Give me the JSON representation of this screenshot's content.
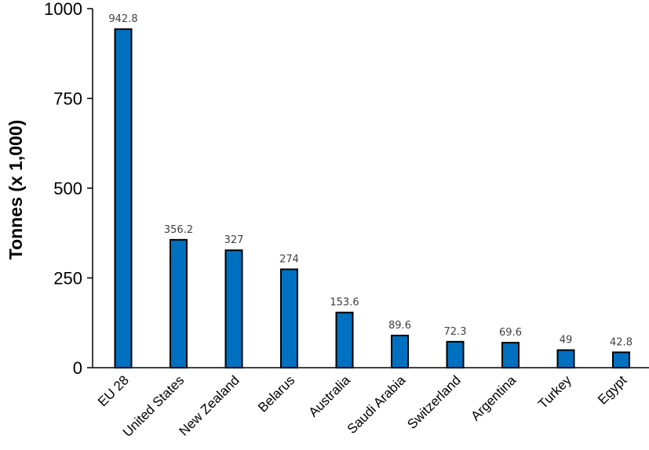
{
  "chart_data": {
    "type": "bar",
    "title": "",
    "xlabel": "",
    "ylabel": "Tonnes (x 1,000)",
    "ylim": [
      0,
      1000
    ],
    "yticks": [
      0,
      250,
      500,
      750,
      1000
    ],
    "categories": [
      "EU 28",
      "United States",
      "New Zealand",
      "Belarus",
      "Australia",
      "Saudi Arabia",
      "Switzerland",
      "Argentina",
      "Turkey",
      "Egypt"
    ],
    "values": [
      942.8,
      356.2,
      327,
      274,
      153.6,
      89.6,
      72.3,
      69.6,
      49,
      42.8
    ],
    "data_labels": [
      "942.8",
      "356.2",
      "327",
      "274",
      "153.6",
      "89.6",
      "72.3",
      "69.6",
      "49",
      "42.8"
    ],
    "bar_color": "#0070C0",
    "bar_outline": "#000000",
    "grid": false,
    "legend": "none"
  }
}
